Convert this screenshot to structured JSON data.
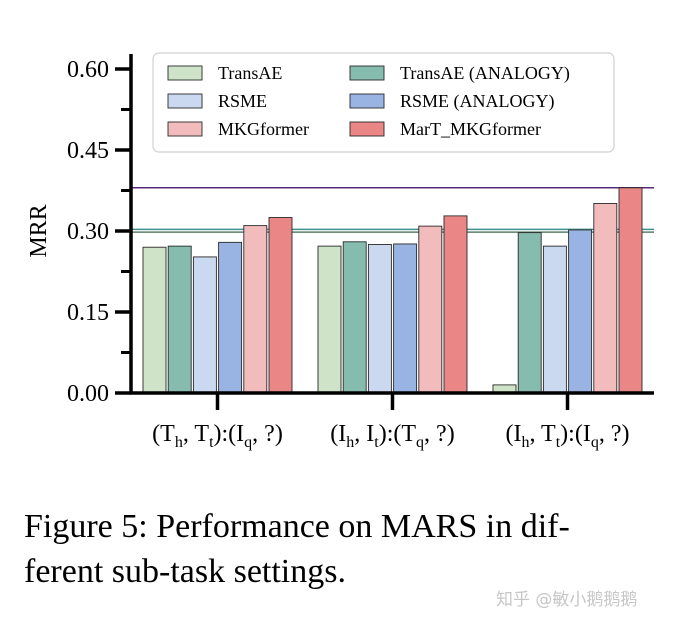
{
  "chart_data": {
    "type": "bar",
    "ylabel": "MRR",
    "ylim": [
      0,
      0.63
    ],
    "yticks": [
      "0.00",
      "0.15",
      "0.30",
      "0.45",
      "0.60"
    ],
    "ytick_values": [
      0,
      0.15,
      0.3,
      0.45,
      0.6
    ],
    "categories": [
      {
        "a": "(T",
        "a_sub": "h",
        "b": ", T",
        "b_sub": "t",
        "c": "):(I",
        "c_sub": "q",
        "d": ", ?)"
      },
      {
        "a": "(I",
        "a_sub": "h",
        "b": ", I",
        "b_sub": "t",
        "c": "):(T",
        "c_sub": "q",
        "d": ", ?)"
      },
      {
        "a": "(I",
        "a_sub": "h",
        "b": ", T",
        "b_sub": "t",
        "c": "):(I",
        "c_sub": "q",
        "d": ", ?)"
      }
    ],
    "series": [
      {
        "name": "TransAE",
        "color": "#cfe3c8",
        "values": [
          0.27,
          0.272,
          0.015
        ]
      },
      {
        "name": "TransAE (ANALOGY)",
        "color": "#86bcae",
        "values": [
          0.272,
          0.28,
          0.297
        ]
      },
      {
        "name": "RSME",
        "color": "#cbd9f0",
        "values": [
          0.252,
          0.275,
          0.272
        ]
      },
      {
        "name": "RSME (ANALOGY)",
        "color": "#99b4e3",
        "values": [
          0.279,
          0.276,
          0.302
        ]
      },
      {
        "name": "MKGformer",
        "color": "#f3bcbc",
        "values": [
          0.31,
          0.309,
          0.351
        ]
      },
      {
        "name": "MarT_MKGformer",
        "color": "#ea8686",
        "values": [
          0.325,
          0.328,
          0.38
        ]
      }
    ],
    "reference_lines": [
      {
        "value": 0.38,
        "color": "#5a2a7a"
      },
      {
        "value": 0.303,
        "color": "#3f8f8f"
      },
      {
        "value": 0.298,
        "color": "#5a7f6a"
      }
    ],
    "legend": {
      "position": "top",
      "columns": 2
    }
  },
  "caption": {
    "line1": "Figure 5: Performance on MARS in dif-",
    "line2": "ferent sub-task settings."
  },
  "watermark": "知乎 @敏小鹅鹅鹅"
}
